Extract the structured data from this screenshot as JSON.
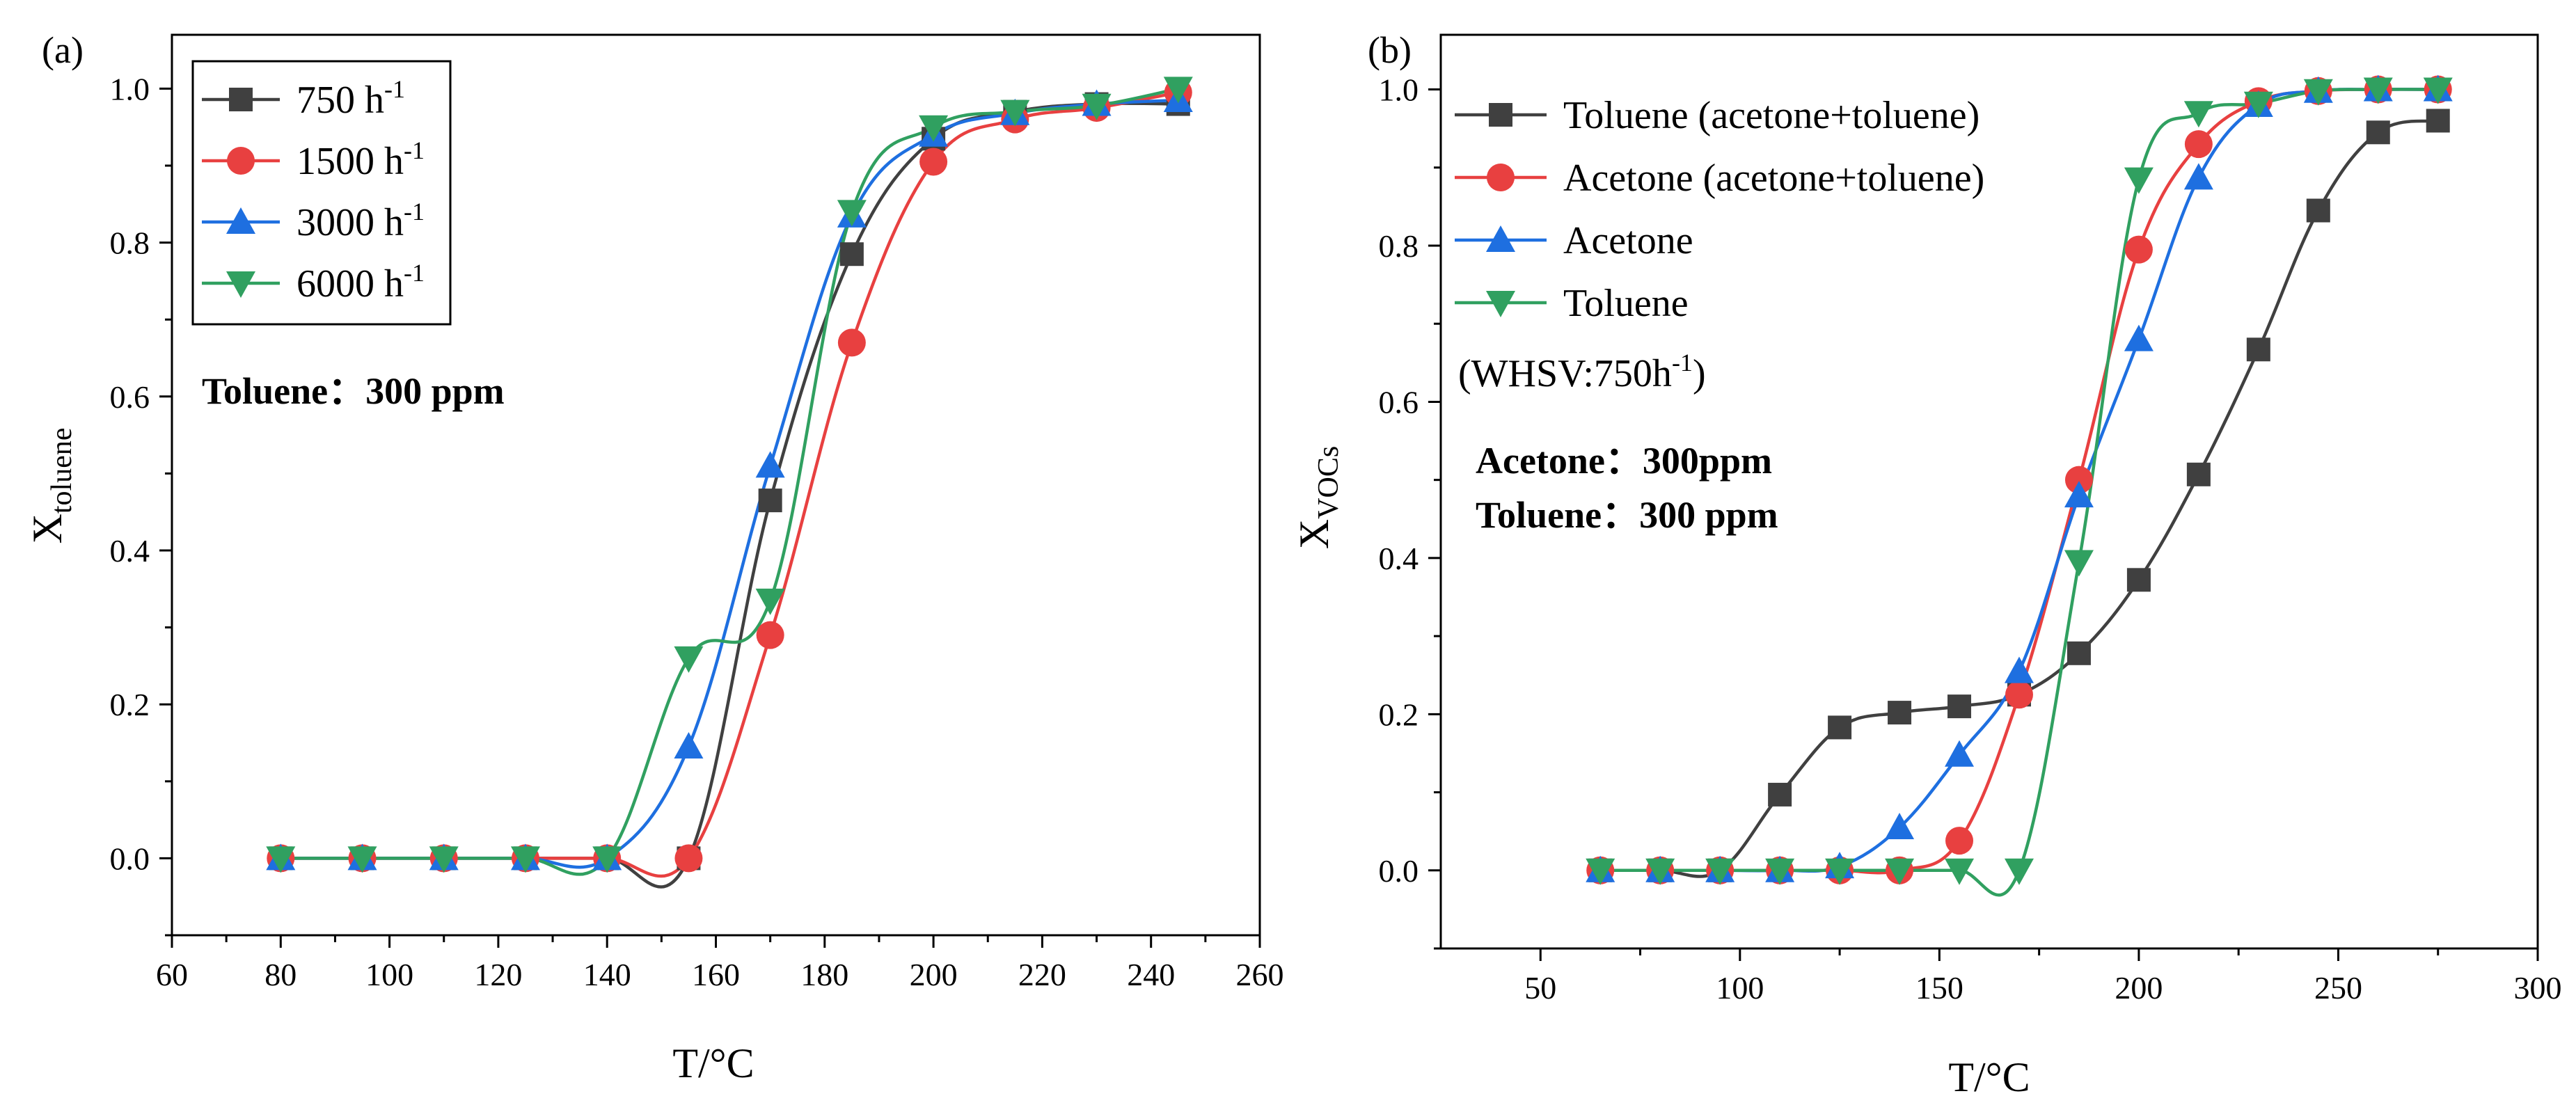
{
  "figure": {
    "panels": [
      "(a)",
      "(b)"
    ]
  },
  "chart_data": [
    {
      "panel": "(a)",
      "type": "scatter",
      "title": "",
      "xlabel": "T/°C",
      "ylabel_main": "X",
      "ylabel_sub": "toluene",
      "xlim": [
        60,
        260
      ],
      "ylim": [
        -0.1,
        1.07
      ],
      "xticks": [
        60,
        80,
        100,
        120,
        140,
        160,
        180,
        200,
        220,
        240,
        260
      ],
      "yticks": [
        0.0,
        0.2,
        0.4,
        0.6,
        0.8,
        1.0
      ],
      "ytick_labels": [
        "0.0",
        "0.2",
        "0.4",
        "0.6",
        "0.8",
        "1.0"
      ],
      "legend_position": "top-left (boxed)",
      "annotations": [
        {
          "text": "Toluene：300 ppm",
          "style": "bold"
        }
      ],
      "series": [
        {
          "name_main": "750 h",
          "name_sup": "-1",
          "color": "#404040",
          "marker": "square",
          "x": [
            80,
            95,
            110,
            125,
            140,
            155,
            170,
            185,
            200,
            215,
            230,
            245
          ],
          "y": [
            0.0,
            0.0,
            0.0,
            0.0,
            0.0,
            0.0,
            0.465,
            0.785,
            0.935,
            0.97,
            0.98,
            0.98
          ],
          "curve_offset": 0
        },
        {
          "name_main": "1500 h",
          "name_sup": "-1",
          "color": "#e84040",
          "marker": "circle",
          "x": [
            80,
            95,
            110,
            125,
            140,
            155,
            170,
            185,
            200,
            215,
            230,
            245
          ],
          "y": [
            0.0,
            0.0,
            0.0,
            0.0,
            0.0,
            0.0,
            0.29,
            0.67,
            0.905,
            0.96,
            0.975,
            0.995
          ],
          "curve_offset": 0
        },
        {
          "name_main": "3000 h",
          "name_sup": "-1",
          "color": "#1e6fe0",
          "marker": "triangle-up",
          "x": [
            80,
            95,
            110,
            125,
            140,
            155,
            170,
            185,
            200,
            215,
            230,
            245
          ],
          "y": [
            0.0,
            0.0,
            0.0,
            0.0,
            0.0,
            0.145,
            0.51,
            0.835,
            0.94,
            0.968,
            0.98,
            0.985
          ],
          "curve_offset": 0
        },
        {
          "name_main": "6000 h",
          "name_sup": "-1",
          "color": "#30a060",
          "marker": "triangle-down",
          "x": [
            80,
            95,
            110,
            125,
            140,
            155,
            170,
            185,
            200,
            215,
            230,
            245
          ],
          "y": [
            0.0,
            0.0,
            0.0,
            0.0,
            0.0,
            0.26,
            0.335,
            0.84,
            0.95,
            0.97,
            0.978,
            1.0
          ],
          "curve_offset": 0
        }
      ]
    },
    {
      "panel": "(b)",
      "type": "scatter",
      "title": "",
      "xlabel": "T/°C",
      "ylabel_main": "X",
      "ylabel_sub": "VOCs",
      "xlim": [
        25,
        300
      ],
      "ylim": [
        -0.1,
        1.07
      ],
      "xticks": [
        50,
        100,
        150,
        200,
        250,
        300
      ],
      "yticks": [
        0.0,
        0.2,
        0.4,
        0.6,
        0.8,
        1.0
      ],
      "ytick_labels": [
        "0.0",
        "0.2",
        "0.4",
        "0.6",
        "0.8",
        "1.0"
      ],
      "legend_position": "top-left (no frame)",
      "annotations": [
        {
          "text": "(WHSV:750h",
          "sup": "-1",
          "tail": ")",
          "style": "plain"
        },
        {
          "text": "Acetone：300ppm",
          "style": "bold"
        },
        {
          "text": "Toluene：300 ppm",
          "style": "bold"
        }
      ],
      "series": [
        {
          "name": "Toluene (acetone+toluene)",
          "color": "#404040",
          "marker": "square",
          "x": [
            65,
            80,
            95,
            110,
            125,
            140,
            155,
            170,
            185,
            200,
            215,
            230,
            245,
            260,
            275
          ],
          "y": [
            0.0,
            0.0,
            0.0,
            0.097,
            0.183,
            0.202,
            0.21,
            0.225,
            0.278,
            0.372,
            0.507,
            0.667,
            0.845,
            0.945,
            0.96
          ]
        },
        {
          "name": "Acetone (acetone+toluene)",
          "color": "#e84040",
          "marker": "circle",
          "x": [
            65,
            80,
            95,
            110,
            125,
            140,
            155,
            170,
            185,
            200,
            215,
            230,
            245,
            260,
            275
          ],
          "y": [
            0.0,
            0.0,
            0.0,
            0.0,
            0.0,
            0.0,
            0.038,
            0.225,
            0.5,
            0.795,
            0.93,
            0.985,
            0.998,
            1.0,
            1.0
          ]
        },
        {
          "name": "Acetone",
          "color": "#1e6fe0",
          "marker": "triangle-up",
          "x": [
            65,
            80,
            95,
            110,
            125,
            140,
            155,
            170,
            185,
            200,
            215,
            230,
            245,
            260,
            275
          ],
          "y": [
            0.0,
            0.0,
            0.0,
            0.0,
            0.005,
            0.055,
            0.148,
            0.255,
            0.48,
            0.68,
            0.887,
            0.98,
            0.998,
            1.0,
            1.0
          ]
        },
        {
          "name": "Toluene",
          "color": "#30a060",
          "marker": "triangle-down",
          "x": [
            65,
            80,
            95,
            110,
            125,
            140,
            155,
            170,
            185,
            200,
            215,
            230,
            245,
            260,
            275
          ],
          "y": [
            0.0,
            0.0,
            0.0,
            0.0,
            0.0,
            0.0,
            0.0,
            0.0,
            0.395,
            0.885,
            0.97,
            0.982,
            0.998,
            1.0,
            1.0
          ]
        }
      ]
    }
  ]
}
